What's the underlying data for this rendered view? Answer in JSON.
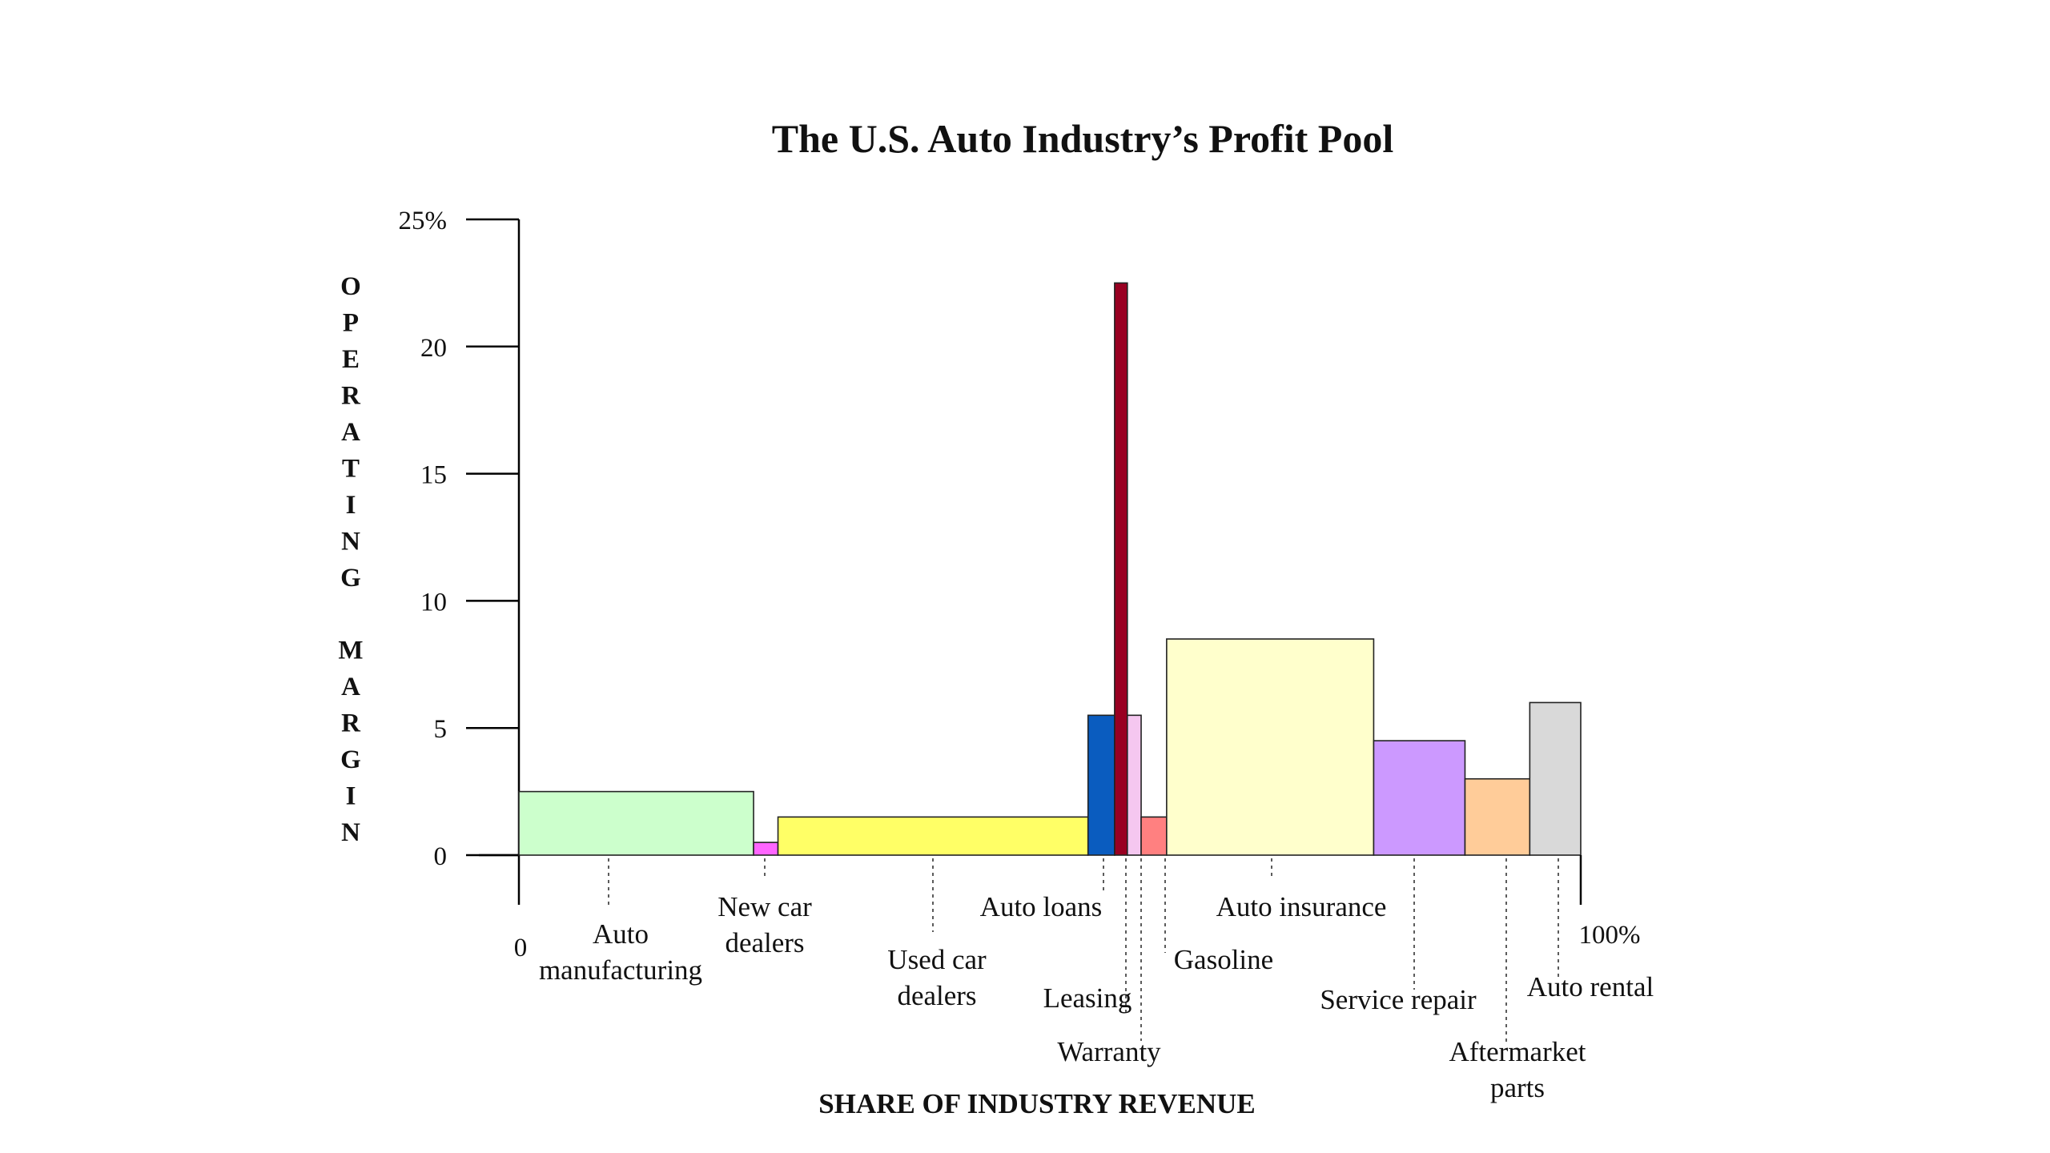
{
  "chart_data": {
    "type": "bar",
    "title": "The U.S. Auto Industry’s Profit Pool",
    "xlabel": "SHARE OF INDUSTRY REVENUE",
    "ylabel": "OPERATING MARGIN",
    "xlim": [
      0,
      100
    ],
    "ylim": [
      0,
      25
    ],
    "x_tick_labels": {
      "start": "0",
      "end": "100%"
    },
    "y_ticks": [
      {
        "value": 0,
        "label": "0"
      },
      {
        "value": 5,
        "label": "5"
      },
      {
        "value": 10,
        "label": "10"
      },
      {
        "value": 15,
        "label": "15"
      },
      {
        "value": 20,
        "label": "20"
      },
      {
        "value": 25,
        "label": "25%"
      }
    ],
    "grid": false,
    "legend": "none",
    "segments": [
      {
        "label": "Auto manufacturing",
        "lines": [
          "Auto",
          "manufacturing"
        ],
        "share": 22.1,
        "margin": 2.5,
        "color": "#ccffcc"
      },
      {
        "label": "New car dealers",
        "lines": [
          "New car",
          "dealers"
        ],
        "share": 2.3,
        "margin": 0.5,
        "color": "#ff66ff"
      },
      {
        "label": "Used car dealers",
        "lines": [
          "Used car",
          "dealers"
        ],
        "share": 29.2,
        "margin": 1.5,
        "color": "#ffff66"
      },
      {
        "label": "Auto loans",
        "lines": [
          "Auto loans"
        ],
        "share": 2.5,
        "margin": 5.5,
        "color": "#0a5cbf"
      },
      {
        "label": "Leasing",
        "lines": [
          "Leasing"
        ],
        "share": 1.2,
        "margin": 22.5,
        "color": "#990022"
      },
      {
        "label": "Warranty",
        "lines": [
          "Warranty"
        ],
        "share": 1.3,
        "margin": 5.5,
        "color": "#f5c7f0"
      },
      {
        "label": "Gasoline",
        "lines": [
          "Gasoline"
        ],
        "share": 2.4,
        "margin": 1.5,
        "color": "#ff8080"
      },
      {
        "label": "Auto insurance",
        "lines": [
          "Auto insurance"
        ],
        "share": 19.5,
        "margin": 8.5,
        "color": "#ffffcc"
      },
      {
        "label": "Service repair",
        "lines": [
          "Service repair"
        ],
        "share": 8.6,
        "margin": 4.5,
        "color": "#cc99ff"
      },
      {
        "label": "Aftermarket parts",
        "lines": [
          "Aftermarket",
          "parts"
        ],
        "share": 6.1,
        "margin": 3.0,
        "color": "#ffcc99"
      },
      {
        "label": "Auto rental",
        "lines": [
          "Auto rental"
        ],
        "share": 4.8,
        "margin": 6.0,
        "color": "#d9d9d9"
      }
    ]
  }
}
